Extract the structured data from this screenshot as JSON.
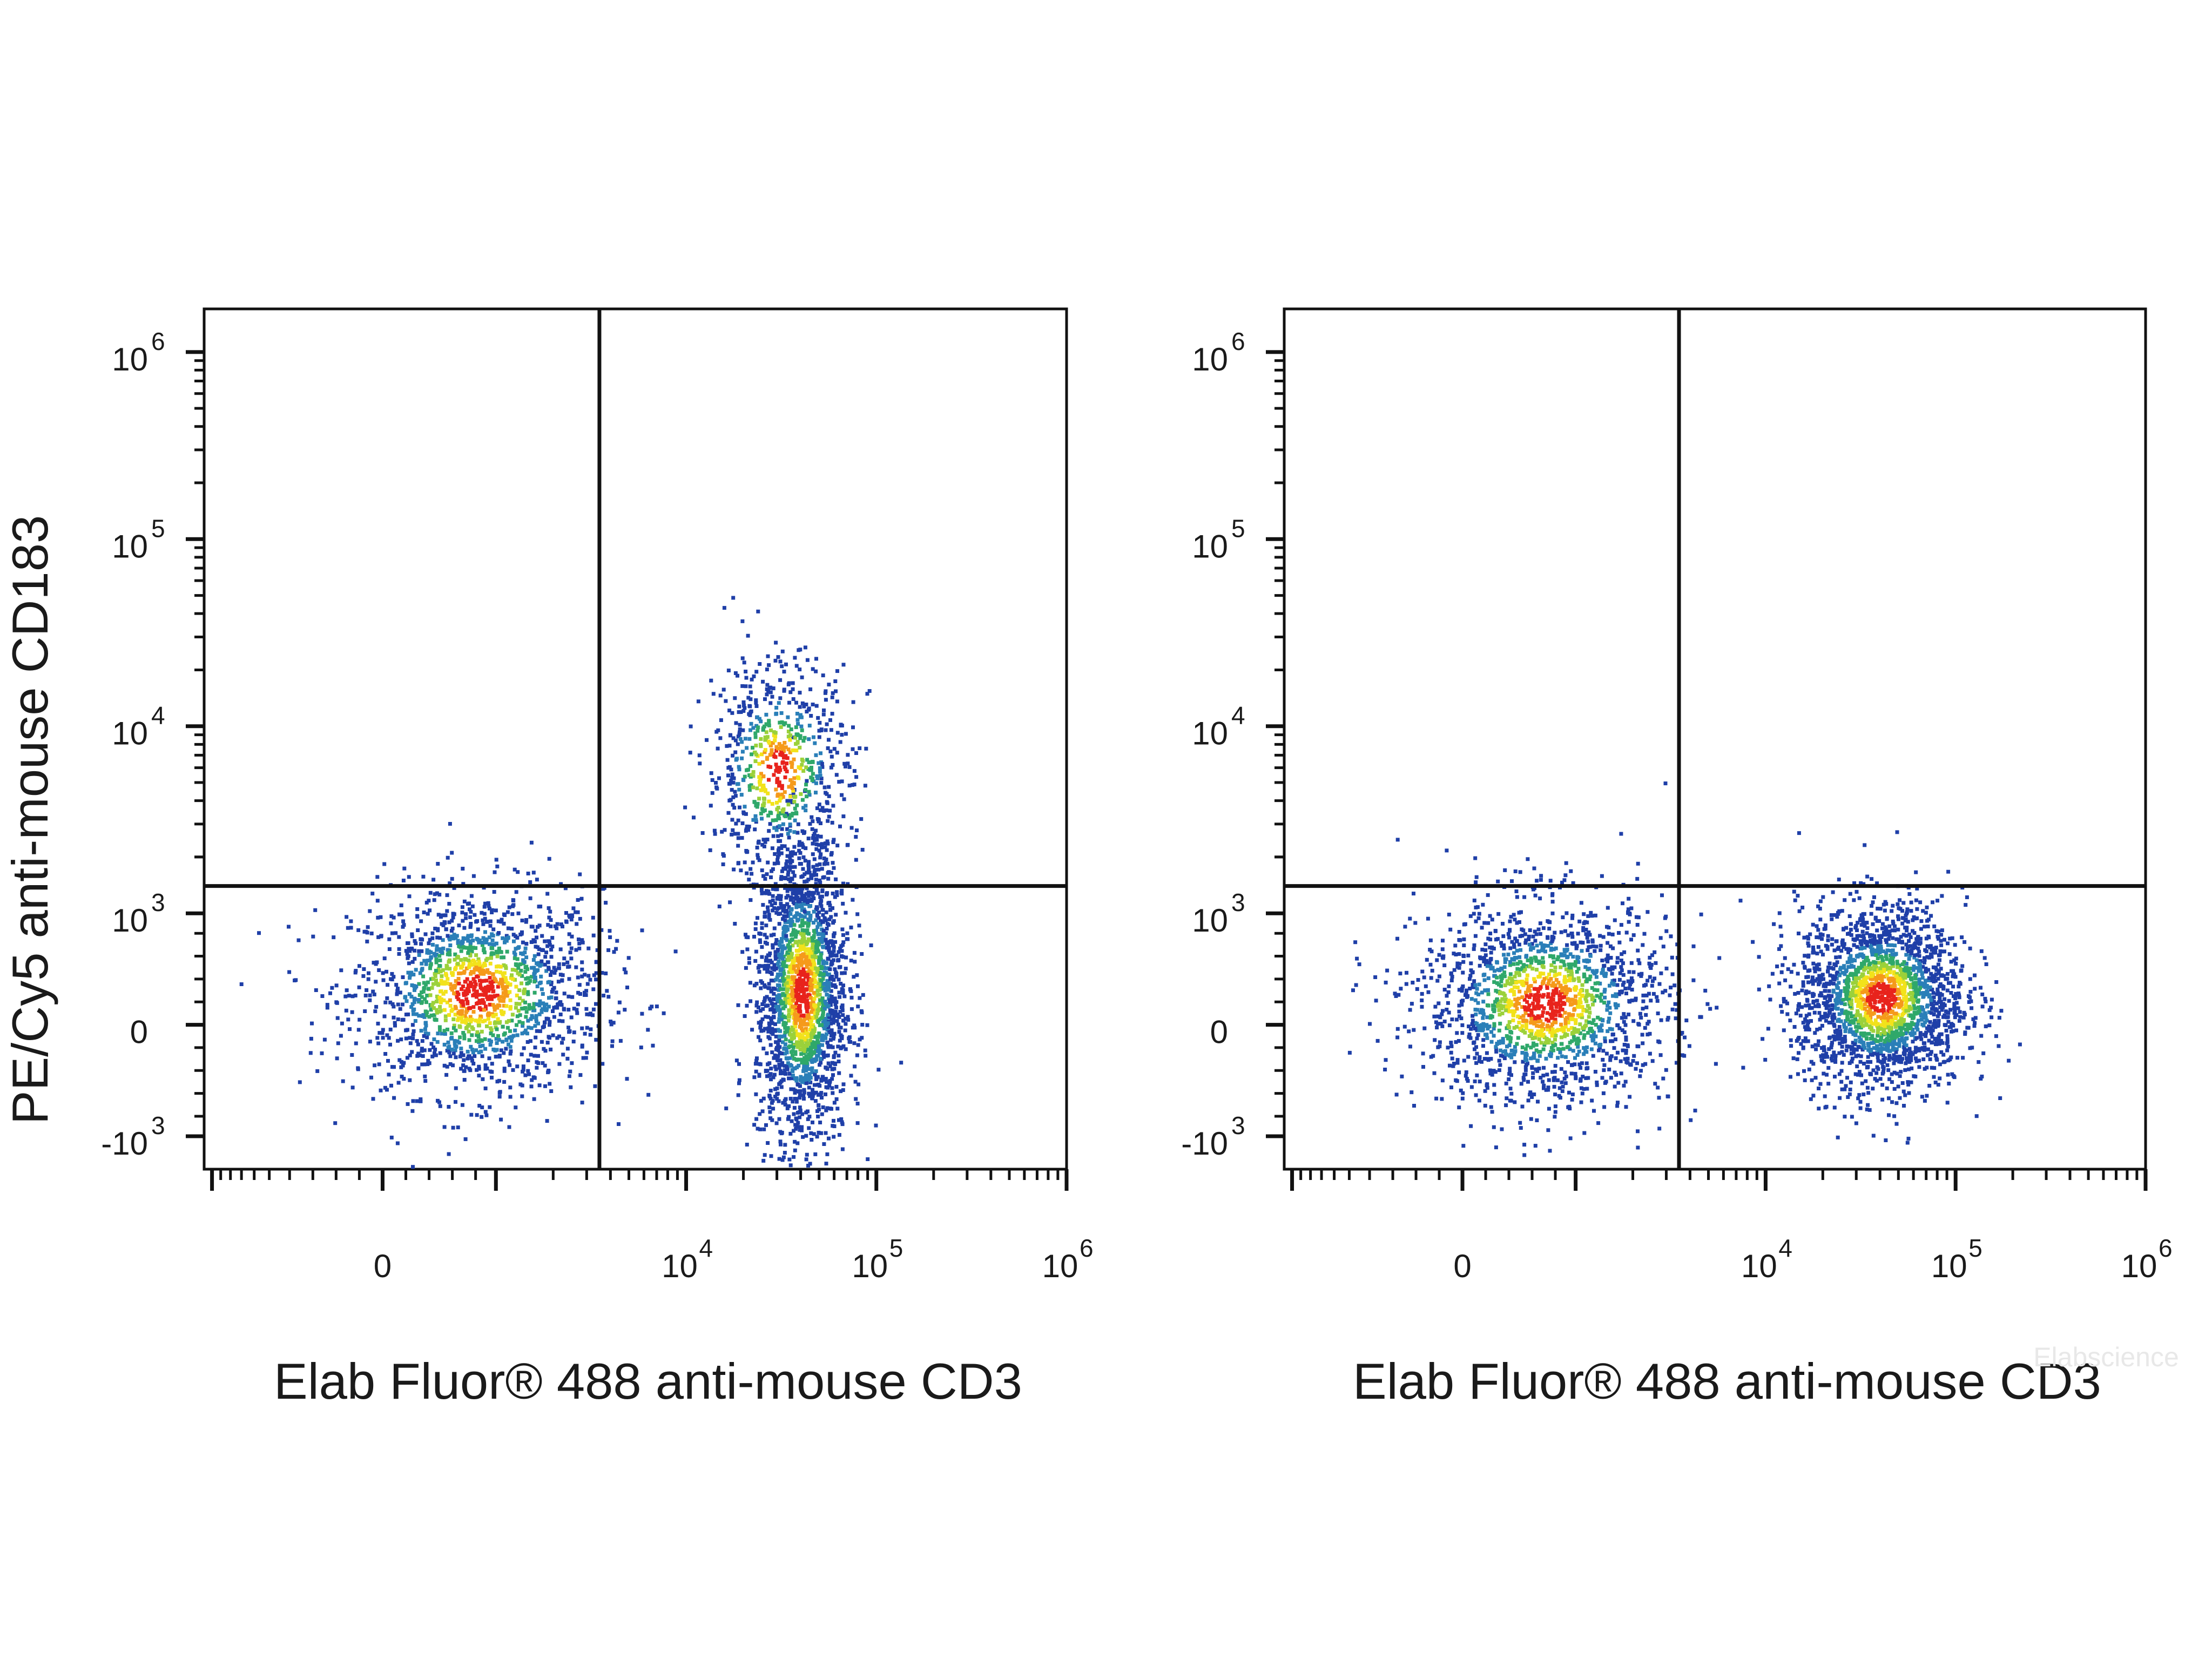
{
  "chart_data": [
    {
      "type": "scatter",
      "panel": "left",
      "xlabel": "Elab Fluor® 488 anti-mouse CD3",
      "ylabel": "PE/Cy5 anti-mouse CD183",
      "x_scale": "biexponential",
      "y_scale": "biexponential",
      "x_ticks": [
        {
          "label": "0",
          "value": 0
        },
        {
          "label": "10",
          "sup": "4",
          "value": 10000
        },
        {
          "label": "10",
          "sup": "5",
          "value": 100000
        },
        {
          "label": "10",
          "sup": "6",
          "value": 1000000
        }
      ],
      "y_ticks": [
        {
          "label": "-10",
          "sup": "3",
          "value": -1000
        },
        {
          "label": "0",
          "value": 0
        },
        {
          "label": "10",
          "sup": "3",
          "value": 1000
        },
        {
          "label": "10",
          "sup": "4",
          "value": 10000
        },
        {
          "label": "10",
          "sup": "5",
          "value": 100000
        },
        {
          "label": "10",
          "sup": "6",
          "value": 1000000
        }
      ],
      "quadrant_gate": {
        "x": 3500,
        "y": 1400
      },
      "populations": [
        {
          "name": "",
          "center_x": 800,
          "center_y": 300,
          "spread": "wide",
          "events": 1600
        },
        {
          "name": "",
          "center_x": 40000,
          "center_y": 300,
          "spread": "tall",
          "events": 2000
        },
        {
          "name": "",
          "center_x": 30000,
          "center_y": 6000,
          "spread": "cloud",
          "events": 700
        }
      ],
      "density_colors": [
        "#1f3fa8",
        "#2a7fb8",
        "#2fa86a",
        "#9bd13a",
        "#f2e21b",
        "#f59a1b",
        "#e8231c"
      ]
    },
    {
      "type": "scatter",
      "panel": "right",
      "xlabel": "Elab Fluor® 488 anti-mouse CD3",
      "ylabel": "",
      "x_scale": "biexponential",
      "y_scale": "biexponential",
      "x_ticks": [
        {
          "label": "0",
          "value": 0
        },
        {
          "label": "10",
          "sup": "4",
          "value": 10000
        },
        {
          "label": "10",
          "sup": "5",
          "value": 100000
        },
        {
          "label": "10",
          "sup": "6",
          "value": 1000000
        }
      ],
      "y_ticks": [
        {
          "label": "-10",
          "sup": "3",
          "value": -1000
        },
        {
          "label": "0",
          "value": 0
        },
        {
          "label": "10",
          "sup": "3",
          "value": 1000
        },
        {
          "label": "10",
          "sup": "4",
          "value": 10000
        },
        {
          "label": "10",
          "sup": "5",
          "value": 100000
        },
        {
          "label": "10",
          "sup": "6",
          "value": 1000000
        }
      ],
      "quadrant_gate": {
        "x": 3500,
        "y": 1400
      },
      "populations": [
        {
          "name": "",
          "center_x": 700,
          "center_y": 200,
          "spread": "wide",
          "events": 1700
        },
        {
          "name": "",
          "center_x": 40000,
          "center_y": 250,
          "spread": "compact",
          "events": 2100
        }
      ],
      "density_colors": [
        "#1f3fa8",
        "#2a7fb8",
        "#2fa86a",
        "#9bd13a",
        "#f2e21b",
        "#f59a1b",
        "#e8231c"
      ]
    }
  ],
  "watermark": "Elabscience"
}
